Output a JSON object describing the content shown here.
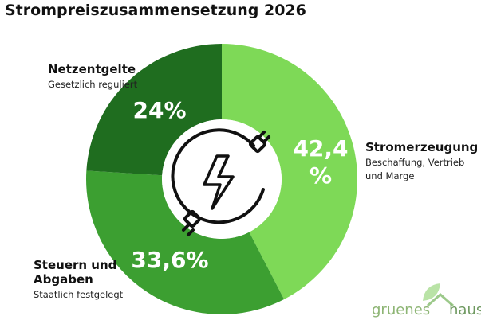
{
  "chart_data": {
    "type": "donut",
    "title": "Strompreiszusammensetzung 2026",
    "categories": [
      "Stromerzeugung",
      "Steuern und Abgaben",
      "Netzentgelte"
    ],
    "descriptions": [
      "Beschaffung, Vertrieb und Marge",
      "Staatlich festgelegt",
      "Gesetzlich reguliert"
    ],
    "values": [
      42.4,
      33.6,
      24
    ],
    "value_labels": [
      "42,4 %",
      "33,6%",
      "24%"
    ],
    "colors": [
      "#7ed957",
      "#3c9f31",
      "#1f6d1f"
    ]
  },
  "logo": {
    "left": "gruenes",
    "right": "haus"
  }
}
